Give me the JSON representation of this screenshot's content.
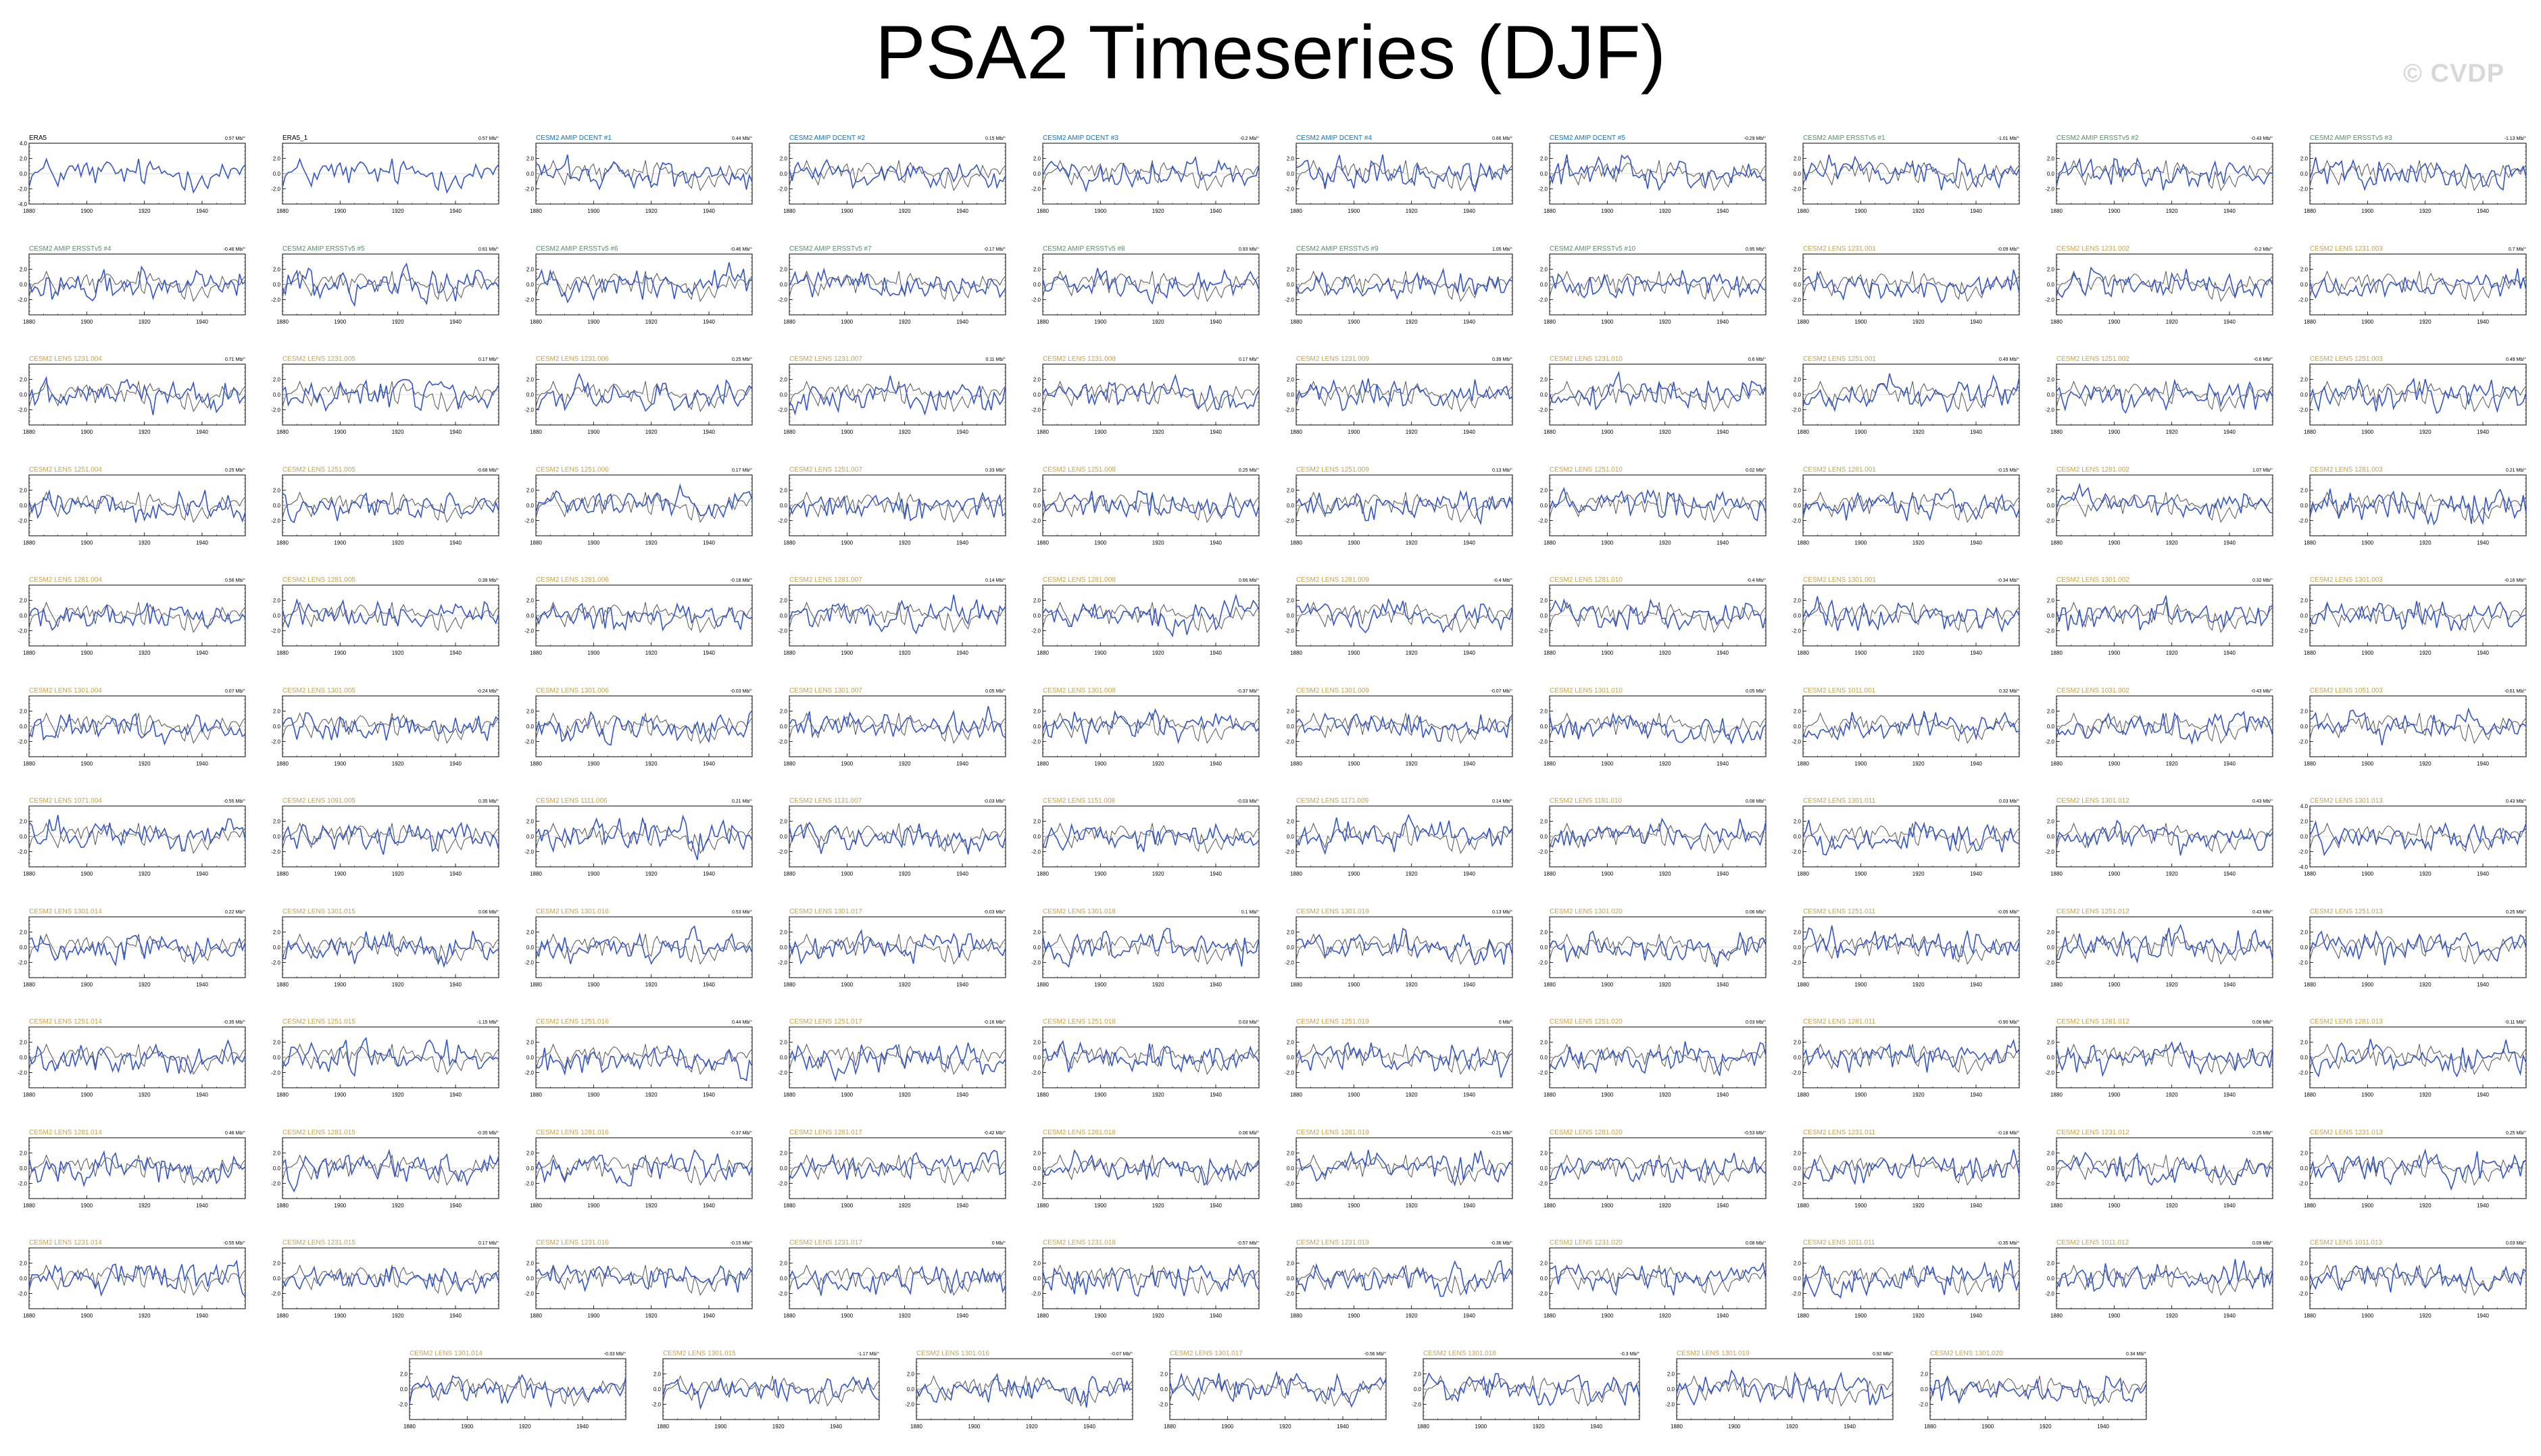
{
  "title": "PSA2 Timeseries (DJF)",
  "watermark": "© CVDP",
  "colors": {
    "obs_title": "#000000",
    "amip_title": "#1a6fb0",
    "ersst_title": "#5a8a6a",
    "lens_title": "#c8a24a",
    "model_line": "#3355cc",
    "obs_line": "#555555",
    "axis": "#000000"
  },
  "chart_data": {
    "type": "line",
    "x_range": [
      1880,
      1955
    ],
    "x_ticks": [
      "1880",
      "1900",
      "1920",
      "1940"
    ],
    "y_range": [
      -4,
      4
    ],
    "y_ticks_default": [
      "2.0",
      "0.0",
      "-2.0"
    ],
    "y_ticks_wide": [
      "4.0",
      "2.0",
      "0.0",
      "-2.0",
      "-4.0"
    ],
    "grid": false,
    "series_description": "Each panel shows the ensemble member PSA2 index (blue) overlaid on the observed index (grey).",
    "panels": [
      {
        "name": "ERA5",
        "trend": "0.57 Mb/°",
        "kind": "obs",
        "yt": "wide"
      },
      {
        "name": "ERA5_1",
        "trend": "0.57 Mb/°",
        "kind": "obs"
      },
      {
        "name": "CESM2 AMIP DCENT #1",
        "trend": "0.44 Mb/°",
        "kind": "amip"
      },
      {
        "name": "CESM2 AMIP DCENT #2",
        "trend": "0.15 Mb/°",
        "kind": "amip"
      },
      {
        "name": "CESM2 AMIP DCENT #3",
        "trend": "-0.2 Mb/°",
        "kind": "amip"
      },
      {
        "name": "CESM2 AMIP DCENT #4",
        "trend": "0.66 Mb/°",
        "kind": "amip"
      },
      {
        "name": "CESM2 AMIP DCENT #5",
        "trend": "-0.29 Mb/°",
        "kind": "amip"
      },
      {
        "name": "CESM2 AMIP ERSSTv5 #1",
        "trend": "-1.01 Mb/°",
        "kind": "ersst"
      },
      {
        "name": "CESM2 AMIP ERSSTv5 #2",
        "trend": "-0.43 Mb/°",
        "kind": "ersst"
      },
      {
        "name": "CESM2 AMIP ERSSTv5 #3",
        "trend": "-1.13 Mb/°",
        "kind": "ersst"
      },
      {
        "name": "CESM2 AMIP ERSSTv5 #4",
        "trend": "-0.46 Mb/°",
        "kind": "ersst"
      },
      {
        "name": "CESM2 AMIP ERSSTv5 #5",
        "trend": "0.61 Mb/°",
        "kind": "ersst"
      },
      {
        "name": "CESM2 AMIP ERSSTv5 #6",
        "trend": "-0.46 Mb/°",
        "kind": "ersst"
      },
      {
        "name": "CESM2 AMIP ERSSTv5 #7",
        "trend": "-0.17 Mb/°",
        "kind": "ersst"
      },
      {
        "name": "CESM2 AMIP ERSSTv5 #8",
        "trend": "0.93 Mb/°",
        "kind": "ersst"
      },
      {
        "name": "CESM2 AMIP ERSSTv5 #9",
        "trend": "1.05 Mb/°",
        "kind": "ersst"
      },
      {
        "name": "CESM2 AMIP ERSSTv5 #10",
        "trend": "0.95 Mb/°",
        "kind": "ersst"
      },
      {
        "name": "CESM2 LENS 1231.001",
        "trend": "-0.09 Mb/°",
        "kind": "lens"
      },
      {
        "name": "CESM2 LENS 1231.002",
        "trend": "-0.2 Mb/°",
        "kind": "lens"
      },
      {
        "name": "CESM2 LENS 1231.003",
        "trend": "0.7 Mb/°",
        "kind": "lens"
      },
      {
        "name": "CESM2 LENS 1231.004",
        "trend": "0.71 Mb/°",
        "kind": "lens"
      },
      {
        "name": "CESM2 LENS 1231.005",
        "trend": "0.17 Mb/°",
        "kind": "lens"
      },
      {
        "name": "CESM2 LENS 1231.006",
        "trend": "0.25 Mb/°",
        "kind": "lens"
      },
      {
        "name": "CESM2 LENS 1231.007",
        "trend": "0.11 Mb/°",
        "kind": "lens"
      },
      {
        "name": "CESM2 LENS 1231.008",
        "trend": "0.17 Mb/°",
        "kind": "lens"
      },
      {
        "name": "CESM2 LENS 1231.009",
        "trend": "0.39 Mb/°",
        "kind": "lens"
      },
      {
        "name": "CESM2 LENS 1231.010",
        "trend": "0.6 Mb/°",
        "kind": "lens"
      },
      {
        "name": "CESM2 LENS 1251.001",
        "trend": "0.49 Mb/°",
        "kind": "lens"
      },
      {
        "name": "CESM2 LENS 1251.002",
        "trend": "-0.6 Mb/°",
        "kind": "lens"
      },
      {
        "name": "CESM2 LENS 1251.003",
        "trend": "0.49 Mb/°",
        "kind": "lens"
      },
      {
        "name": "CESM2 LENS 1251.004",
        "trend": "0.25 Mb/°",
        "kind": "lens"
      },
      {
        "name": "CESM2 LENS 1251.005",
        "trend": "-0.68 Mb/°",
        "kind": "lens"
      },
      {
        "name": "CESM2 LENS 1251.006",
        "trend": "0.17 Mb/°",
        "kind": "lens"
      },
      {
        "name": "CESM2 LENS 1251.007",
        "trend": "0.33 Mb/°",
        "kind": "lens"
      },
      {
        "name": "CESM2 LENS 1251.008",
        "trend": "0.25 Mb/°",
        "kind": "lens"
      },
      {
        "name": "CESM2 LENS 1251.009",
        "trend": "0.13 Mb/°",
        "kind": "lens"
      },
      {
        "name": "CESM2 LENS 1251.010",
        "trend": "0.02 Mb/°",
        "kind": "lens"
      },
      {
        "name": "CESM2 LENS 1281.001",
        "trend": "-0.15 Mb/°",
        "kind": "lens"
      },
      {
        "name": "CESM2 LENS 1281.002",
        "trend": "1.07 Mb/°",
        "kind": "lens"
      },
      {
        "name": "CESM2 LENS 1281.003",
        "trend": "0.21 Mb/°",
        "kind": "lens"
      },
      {
        "name": "CESM2 LENS 1281.004",
        "trend": "0.56 Mb/°",
        "kind": "lens"
      },
      {
        "name": "CESM2 LENS 1281.005",
        "trend": "0.39 Mb/°",
        "kind": "lens"
      },
      {
        "name": "CESM2 LENS 1281.006",
        "trend": "-0.18 Mb/°",
        "kind": "lens"
      },
      {
        "name": "CESM2 LENS 1281.007",
        "trend": "0.14 Mb/°",
        "kind": "lens"
      },
      {
        "name": "CESM2 LENS 1281.008",
        "trend": "0.66 Mb/°",
        "kind": "lens"
      },
      {
        "name": "CESM2 LENS 1281.009",
        "trend": "-0.4 Mb/°",
        "kind": "lens"
      },
      {
        "name": "CESM2 LENS 1281.010",
        "trend": "-0.4 Mb/°",
        "kind": "lens"
      },
      {
        "name": "CESM2 LENS 1301.001",
        "trend": "-0.34 Mb/°",
        "kind": "lens"
      },
      {
        "name": "CESM2 LENS 1301.002",
        "trend": "0.32 Mb/°",
        "kind": "lens"
      },
      {
        "name": "CESM2 LENS 1301.003",
        "trend": "-0.16 Mb/°",
        "kind": "lens"
      },
      {
        "name": "CESM2 LENS 1301.004",
        "trend": "0.07 Mb/°",
        "kind": "lens"
      },
      {
        "name": "CESM2 LENS 1301.005",
        "trend": "-0.24 Mb/°",
        "kind": "lens"
      },
      {
        "name": "CESM2 LENS 1301.006",
        "trend": "-0.03 Mb/°",
        "kind": "lens"
      },
      {
        "name": "CESM2 LENS 1301.007",
        "trend": "0.05 Mb/°",
        "kind": "lens"
      },
      {
        "name": "CESM2 LENS 1301.008",
        "trend": "-0.37 Mb/°",
        "kind": "lens"
      },
      {
        "name": "CESM2 LENS 1301.009",
        "trend": "-0.07 Mb/°",
        "kind": "lens"
      },
      {
        "name": "CESM2 LENS 1301.010",
        "trend": "0.05 Mb/°",
        "kind": "lens"
      },
      {
        "name": "CESM2 LENS 1011.001",
        "trend": "0.32 Mb/°",
        "kind": "lens"
      },
      {
        "name": "CESM2 LENS 1031.002",
        "trend": "-0.43 Mb/°",
        "kind": "lens"
      },
      {
        "name": "CESM2 LENS 1051.003",
        "trend": "-0.61 Mb/°",
        "kind": "lens"
      },
      {
        "name": "CESM2 LENS 1071.004",
        "trend": "-0.55 Mb/°",
        "kind": "lens"
      },
      {
        "name": "CESM2 LENS 1091.005",
        "trend": "0.35 Mb/°",
        "kind": "lens"
      },
      {
        "name": "CESM2 LENS 1111.006",
        "trend": "0.21 Mb/°",
        "kind": "lens"
      },
      {
        "name": "CESM2 LENS 1131.007",
        "trend": "-0.03 Mb/°",
        "kind": "lens"
      },
      {
        "name": "CESM2 LENS 1151.008",
        "trend": "-0.03 Mb/°",
        "kind": "lens"
      },
      {
        "name": "CESM2 LENS 1171.009",
        "trend": "0.14 Mb/°",
        "kind": "lens"
      },
      {
        "name": "CESM2 LENS 1191.010",
        "trend": "0.08 Mb/°",
        "kind": "lens"
      },
      {
        "name": "CESM2 LENS 1301.011",
        "trend": "0.03 Mb/°",
        "kind": "lens"
      },
      {
        "name": "CESM2 LENS 1301.012",
        "trend": "0.43 Mb/°",
        "kind": "lens"
      },
      {
        "name": "CESM2 LENS 1301.013",
        "trend": "0.43 Mb/°",
        "kind": "lens",
        "yt": "wide"
      },
      {
        "name": "CESM2 LENS 1301.014",
        "trend": "0.22 Mb/°",
        "kind": "lens"
      },
      {
        "name": "CESM2 LENS 1301.015",
        "trend": "0.06 Mb/°",
        "kind": "lens"
      },
      {
        "name": "CESM2 LENS 1301.016",
        "trend": "0.53 Mb/°",
        "kind": "lens"
      },
      {
        "name": "CESM2 LENS 1301.017",
        "trend": "-0.03 Mb/°",
        "kind": "lens"
      },
      {
        "name": "CESM2 LENS 1301.018",
        "trend": "0.1 Mb/°",
        "kind": "lens"
      },
      {
        "name": "CESM2 LENS 1301.019",
        "trend": "0.13 Mb/°",
        "kind": "lens"
      },
      {
        "name": "CESM2 LENS 1301.020",
        "trend": "0.06 Mb/°",
        "kind": "lens"
      },
      {
        "name": "CESM2 LENS 1251.011",
        "trend": "-0.05 Mb/°",
        "kind": "lens"
      },
      {
        "name": "CESM2 LENS 1251.012",
        "trend": "0.43 Mb/°",
        "kind": "lens"
      },
      {
        "name": "CESM2 LENS 1251.013",
        "trend": "0.25 Mb/°",
        "kind": "lens"
      },
      {
        "name": "CESM2 LENS 1251.014",
        "trend": "-0.35 Mb/°",
        "kind": "lens"
      },
      {
        "name": "CESM2 LENS 1251.015",
        "trend": "-1.15 Mb/°",
        "kind": "lens"
      },
      {
        "name": "CESM2 LENS 1251.016",
        "trend": "0.44 Mb/°",
        "kind": "lens"
      },
      {
        "name": "CESM2 LENS 1251.017",
        "trend": "-0.16 Mb/°",
        "kind": "lens"
      },
      {
        "name": "CESM2 LENS 1251.018",
        "trend": "0.03 Mb/°",
        "kind": "lens"
      },
      {
        "name": "CESM2 LENS 1251.019",
        "trend": "0 Mb/°",
        "kind": "lens"
      },
      {
        "name": "CESM2 LENS 1251.020",
        "trend": "0.03 Mb/°",
        "kind": "lens"
      },
      {
        "name": "CESM2 LENS 1281.011",
        "trend": "-0.90 Mb/°",
        "kind": "lens"
      },
      {
        "name": "CESM2 LENS 1281.012",
        "trend": "0.06 Mb/°",
        "kind": "lens"
      },
      {
        "name": "CESM2 LENS 1281.013",
        "trend": "-0.11 Mb/°",
        "kind": "lens"
      },
      {
        "name": "CESM2 LENS 1281.014",
        "trend": "0.46 Mb/°",
        "kind": "lens"
      },
      {
        "name": "CESM2 LENS 1281.015",
        "trend": "-0.35 Mb/°",
        "kind": "lens"
      },
      {
        "name": "CESM2 LENS 1281.016",
        "trend": "-0.37 Mb/°",
        "kind": "lens"
      },
      {
        "name": "CESM2 LENS 1281.017",
        "trend": "-0.42 Mb/°",
        "kind": "lens"
      },
      {
        "name": "CESM2 LENS 1281.018",
        "trend": "0.06 Mb/°",
        "kind": "lens"
      },
      {
        "name": "CESM2 LENS 1281.019",
        "trend": "-0.21 Mb/°",
        "kind": "lens"
      },
      {
        "name": "CESM2 LENS 1281.020",
        "trend": "-0.53 Mb/°",
        "kind": "lens"
      },
      {
        "name": "CESM2 LENS 1231.011",
        "trend": "-0.18 Mb/°",
        "kind": "lens"
      },
      {
        "name": "CESM2 LENS 1231.012",
        "trend": "0.25 Mb/°",
        "kind": "lens"
      },
      {
        "name": "CESM2 LENS 1231.013",
        "trend": "0.25 Mb/°",
        "kind": "lens"
      },
      {
        "name": "CESM2 LENS 1231.014",
        "trend": "-0.55 Mb/°",
        "kind": "lens"
      },
      {
        "name": "CESM2 LENS 1231.015",
        "trend": "0.17 Mb/°",
        "kind": "lens"
      },
      {
        "name": "CESM2 LENS 1231.016",
        "trend": "-0.15 Mb/°",
        "kind": "lens"
      },
      {
        "name": "CESM2 LENS 1231.017",
        "trend": "0 Mb/°",
        "kind": "lens"
      },
      {
        "name": "CESM2 LENS 1231.018",
        "trend": "-0.57 Mb/°",
        "kind": "lens"
      },
      {
        "name": "CESM2 LENS 1231.019",
        "trend": "-0.36 Mb/°",
        "kind": "lens"
      },
      {
        "name": "CESM2 LENS 1231.020",
        "trend": "0.08 Mb/°",
        "kind": "lens"
      },
      {
        "name": "CESM2 LENS 1011.011",
        "trend": "-0.35 Mb/°",
        "kind": "lens"
      },
      {
        "name": "CESM2 LENS 1011.012",
        "trend": "0.09 Mb/°",
        "kind": "lens"
      },
      {
        "name": "CESM2 LENS 1011.013",
        "trend": "0.03 Mb/°",
        "kind": "lens"
      },
      {
        "name": "CESM2 LENS 1301.014",
        "trend": "-0.33 Mb/°",
        "kind": "lens"
      },
      {
        "name": "CESM2 LENS 1301.015",
        "trend": "-1.17 Mb/°",
        "kind": "lens"
      },
      {
        "name": "CESM2 LENS 1301.016",
        "trend": "-0.07 Mb/°",
        "kind": "lens"
      },
      {
        "name": "CESM2 LENS 1301.017",
        "trend": "-0.56 Mb/°",
        "kind": "lens"
      },
      {
        "name": "CESM2 LENS 1301.018",
        "trend": "-0.3 Mb/°",
        "kind": "lens"
      },
      {
        "name": "CESM2 LENS 1301.019",
        "trend": "0.92 Mb/°",
        "kind": "lens"
      },
      {
        "name": "CESM2 LENS 1301.020",
        "trend": "0.34 Mb/°",
        "kind": "lens"
      }
    ]
  }
}
